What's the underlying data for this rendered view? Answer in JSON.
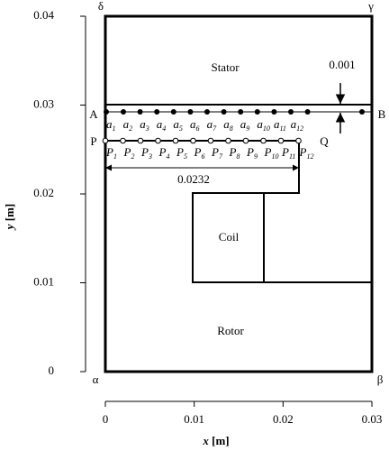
{
  "axes": {
    "xlabel_var": "x",
    "xlabel_unit": "[m]",
    "ylabel_var": "y",
    "ylabel_unit": "[m]",
    "xlim": [
      0,
      0.03
    ],
    "ylim": [
      0,
      0.04
    ],
    "xticks": [
      0,
      0.01,
      0.02,
      0.03
    ],
    "yticks": [
      0,
      0.01,
      0.02,
      0.03,
      0.04
    ]
  },
  "corners": {
    "alpha": "α",
    "beta": "β",
    "gamma": "γ",
    "delta": "δ"
  },
  "regions": {
    "stator": "Stator",
    "coil": "Coil",
    "rotor": "Rotor"
  },
  "lines": {
    "A": "A",
    "B": "B",
    "P": "P",
    "Q": "Q"
  },
  "dimensions": {
    "gap": "0.001",
    "width": "0.0232"
  },
  "upper_points": {
    "letter": "a",
    "subscripts": [
      "1",
      "2",
      "3",
      "4",
      "5",
      "6",
      "7",
      "8",
      "9",
      "10",
      "11",
      "12"
    ]
  },
  "lower_points": {
    "letter": "P",
    "subscripts": [
      "1",
      "2",
      "3",
      "4",
      "5",
      "6",
      "7",
      "8",
      "9",
      "10",
      "11",
      "12"
    ]
  }
}
